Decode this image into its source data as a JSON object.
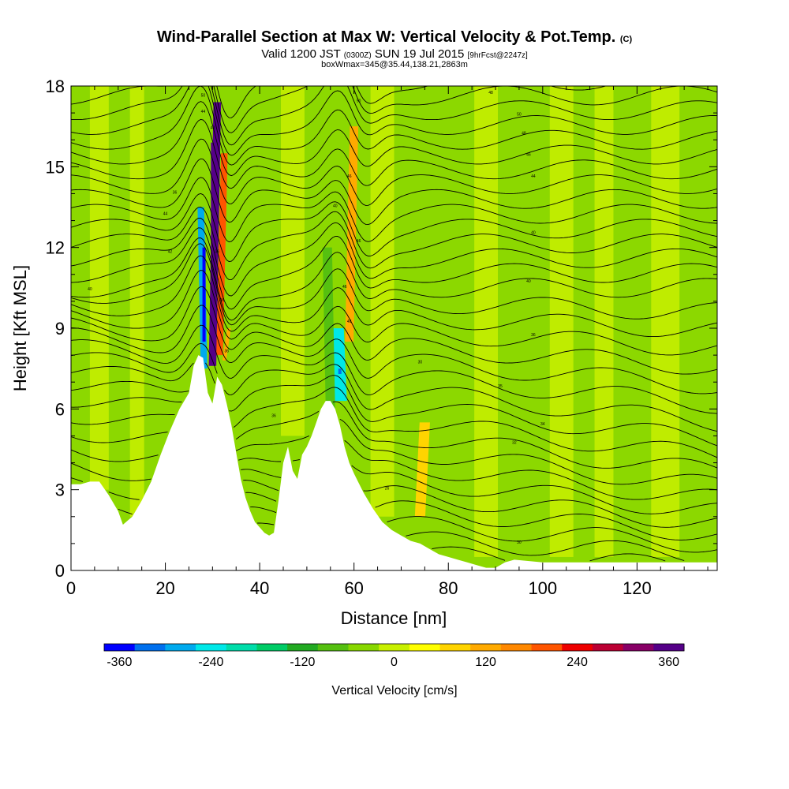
{
  "header": {
    "title_main": "Wind-Parallel Section at Max W: Vertical Velocity & Pot.Temp.",
    "title_c": "(C)",
    "valid_prefix": "Valid 1200 JST",
    "valid_z": "(0300Z)",
    "valid_date": "SUN 19 Jul 2015",
    "forecast": "[9hrFcst@2247z]",
    "box_info": "boxWmax=345@35.44,138.21,2863m"
  },
  "chart_data": {
    "type": "heatmap",
    "title": "Wind-Parallel Section at Max W: Vertical Velocity & Pot.Temp.",
    "xlabel": "Distance [nm]",
    "ylabel": "Height [Kft MSL]",
    "xlim": [
      0,
      137
    ],
    "ylim": [
      0,
      18
    ],
    "xticks": [
      0,
      20,
      40,
      60,
      80,
      100,
      120
    ],
    "yticks": [
      0,
      3,
      6,
      9,
      12,
      15,
      18
    ],
    "colorbar": {
      "label": "Vertical Velocity [cm/s]",
      "ticks": [
        -360,
        -240,
        -120,
        0,
        120,
        240,
        360
      ],
      "colors": [
        "#0000ff",
        "#0070ee",
        "#00aaee",
        "#00e8e8",
        "#00ddaa",
        "#00cc66",
        "#22aa22",
        "#55c010",
        "#88d800",
        "#c8f000",
        "#ffff00",
        "#ffd400",
        "#ffaa00",
        "#ff8800",
        "#ff5500",
        "#ee0000",
        "#bb0033",
        "#880066",
        "#550088"
      ]
    },
    "terrain_kft": [
      [
        0,
        3.2
      ],
      [
        2,
        3.2
      ],
      [
        4,
        3.3
      ],
      [
        6,
        3.3
      ],
      [
        8,
        2.8
      ],
      [
        10,
        2.2
      ],
      [
        11,
        1.7
      ],
      [
        13,
        2.0
      ],
      [
        15,
        2.6
      ],
      [
        17,
        3.3
      ],
      [
        19,
        4.3
      ],
      [
        21,
        5.2
      ],
      [
        23,
        6.0
      ],
      [
        25,
        6.6
      ],
      [
        26,
        7.6
      ],
      [
        27,
        8.0
      ],
      [
        28,
        7.9
      ],
      [
        29,
        6.6
      ],
      [
        30,
        6.2
      ],
      [
        31,
        7.2
      ],
      [
        32,
        6.9
      ],
      [
        33,
        6.2
      ],
      [
        34,
        5.4
      ],
      [
        35,
        4.4
      ],
      [
        36,
        3.4
      ],
      [
        37,
        2.7
      ],
      [
        38,
        2.2
      ],
      [
        39,
        1.8
      ],
      [
        40,
        1.6
      ],
      [
        41,
        1.4
      ],
      [
        42,
        1.3
      ],
      [
        43,
        1.4
      ],
      [
        44,
        2.6
      ],
      [
        45,
        4.0
      ],
      [
        46,
        4.6
      ],
      [
        47,
        3.7
      ],
      [
        48,
        3.4
      ],
      [
        49,
        4.3
      ],
      [
        50,
        4.6
      ],
      [
        51,
        5.0
      ],
      [
        52,
        5.5
      ],
      [
        53,
        6.0
      ],
      [
        54,
        6.3
      ],
      [
        55,
        6.3
      ],
      [
        56,
        6.0
      ],
      [
        57,
        5.4
      ],
      [
        58,
        4.6
      ],
      [
        59,
        4.0
      ],
      [
        60,
        3.6
      ],
      [
        62,
        2.9
      ],
      [
        64,
        2.3
      ],
      [
        66,
        1.8
      ],
      [
        68,
        1.5
      ],
      [
        70,
        1.3
      ],
      [
        72,
        1.1
      ],
      [
        74,
        1.0
      ],
      [
        76,
        0.8
      ],
      [
        78,
        0.6
      ],
      [
        80,
        0.5
      ],
      [
        82,
        0.4
      ],
      [
        84,
        0.3
      ],
      [
        86,
        0.2
      ],
      [
        88,
        0.1
      ],
      [
        90,
        0.1
      ],
      [
        92,
        0.3
      ],
      [
        94,
        0.4
      ],
      [
        100,
        0.3
      ],
      [
        110,
        0.3
      ],
      [
        120,
        0.3
      ],
      [
        130,
        0.3
      ],
      [
        137,
        0.3
      ]
    ],
    "velocity_features": [
      {
        "x": 30,
        "y_bottom": 7.6,
        "y_top": 17.4,
        "width_nm": 1.6,
        "w_cms": 360
      },
      {
        "x": 31.5,
        "y_bottom": 8.0,
        "y_top": 15.5,
        "width_nm": 1.4,
        "w_cms": 180
      },
      {
        "x": 28.2,
        "y_bottom": 7.5,
        "y_top": 13.5,
        "width_nm": 1.4,
        "w_cms": -280
      },
      {
        "x": 59,
        "y_bottom": 8.5,
        "y_top": 16.5,
        "width_nm": 1.8,
        "w_cms": 120
      },
      {
        "x": 57,
        "y_bottom": 6.3,
        "y_top": 9.0,
        "width_nm": 3.0,
        "w_cms": -260
      },
      {
        "x": 55,
        "y_bottom": 6.0,
        "y_top": 12.0,
        "width_nm": 2.0,
        "w_cms": -100
      },
      {
        "x": 74,
        "y_bottom": 2.0,
        "y_top": 5.5,
        "width_nm": 2.2,
        "w_cms": 80
      },
      {
        "x": 32.5,
        "y_bottom": 7.8,
        "y_top": 9.0,
        "width_nm": 0.8,
        "w_cms": 120
      }
    ],
    "light_bands": [
      {
        "x": 6,
        "w": 4,
        "y0": 3,
        "y1": 18
      },
      {
        "x": 14,
        "w": 3,
        "y0": 2,
        "y1": 18
      },
      {
        "x": 47,
        "w": 5,
        "y0": 5,
        "y1": 18
      },
      {
        "x": 66,
        "w": 5,
        "y0": 2,
        "y1": 18
      },
      {
        "x": 88,
        "w": 5,
        "y0": 0.5,
        "y1": 18
      },
      {
        "x": 104,
        "w": 5,
        "y0": 0.5,
        "y1": 18
      },
      {
        "x": 113,
        "w": 4,
        "y0": 0.5,
        "y1": 18
      },
      {
        "x": 126,
        "w": 6,
        "y0": 0.5,
        "y1": 18
      }
    ],
    "isentrope_labels": [
      {
        "x": 28,
        "y": 17.6,
        "text": "50"
      },
      {
        "x": 28,
        "y": 17.0,
        "text": "44"
      },
      {
        "x": 61,
        "y": 17.4,
        "text": "50"
      },
      {
        "x": 89,
        "y": 17.7,
        "text": "48"
      },
      {
        "x": 95,
        "y": 16.9,
        "text": "50"
      },
      {
        "x": 96,
        "y": 16.2,
        "text": "48"
      },
      {
        "x": 97,
        "y": 15.4,
        "text": "46"
      },
      {
        "x": 98,
        "y": 14.6,
        "text": "44"
      },
      {
        "x": 98,
        "y": 12.5,
        "text": "40"
      },
      {
        "x": 97,
        "y": 10.7,
        "text": "40"
      },
      {
        "x": 98,
        "y": 8.7,
        "text": "36"
      },
      {
        "x": 91,
        "y": 6.8,
        "text": "35"
      },
      {
        "x": 100,
        "y": 5.4,
        "text": "34"
      },
      {
        "x": 94,
        "y": 4.7,
        "text": "32"
      },
      {
        "x": 95,
        "y": 1.0,
        "text": "30"
      },
      {
        "x": 74,
        "y": 7.7,
        "text": "30"
      },
      {
        "x": 67,
        "y": 3.0,
        "text": "26"
      },
      {
        "x": 43,
        "y": 5.7,
        "text": "36"
      },
      {
        "x": 22,
        "y": 14.0,
        "text": "36"
      },
      {
        "x": 20,
        "y": 13.2,
        "text": "44"
      },
      {
        "x": 21,
        "y": 11.8,
        "text": "42"
      },
      {
        "x": 4,
        "y": 10.4,
        "text": "40"
      },
      {
        "x": 56,
        "y": 13.5,
        "text": "40"
      },
      {
        "x": 59,
        "y": 14.6,
        "text": "46"
      },
      {
        "x": 61,
        "y": 12.2,
        "text": "46"
      },
      {
        "x": 58,
        "y": 10.5,
        "text": "46"
      },
      {
        "x": 59,
        "y": 9.2,
        "text": "48"
      },
      {
        "x": 30,
        "y": 16.4,
        "text": "40"
      },
      {
        "x": 31,
        "y": 11.8,
        "text": "36"
      },
      {
        "x": 32,
        "y": 10.0,
        "text": "36"
      },
      {
        "x": 33,
        "y": 8.1,
        "text": "36"
      }
    ]
  }
}
